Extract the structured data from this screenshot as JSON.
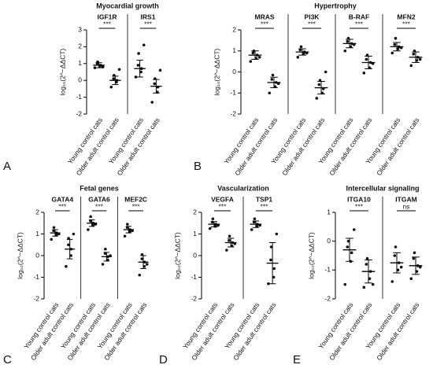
{
  "chart_data": [
    {
      "type": "dot",
      "panel": "A",
      "title": "Myocardial growth",
      "y_label": "log₁₀(2^−ΔΔCT)",
      "ylim": [
        -2,
        3
      ],
      "yticks": [
        -2,
        -1,
        0,
        1,
        2,
        3
      ],
      "categories": [
        "Young control cats",
        "Older adult control cats"
      ],
      "genes": [
        {
          "name": "IGF1R",
          "significance": "***",
          "groups": [
            {
              "mean": 0.9,
              "sd": 0.15,
              "points": [
                0.75,
                0.85,
                0.9,
                1.0,
                1.1,
                0.8
              ]
            },
            {
              "mean": 0.0,
              "sd": 0.25,
              "points": [
                -0.4,
                -0.1,
                0.0,
                0.1,
                0.3,
                0.65
              ]
            }
          ]
        },
        {
          "name": "IRS1",
          "significance": "***",
          "groups": [
            {
              "mean": 0.7,
              "sd": 0.5,
              "points": [
                0.2,
                0.5,
                0.7,
                0.9,
                1.6,
                2.1
              ]
            },
            {
              "mean": -0.35,
              "sd": 0.4,
              "points": [
                -1.3,
                -0.7,
                -0.4,
                -0.2,
                0.1,
                0.6
              ]
            }
          ]
        }
      ]
    },
    {
      "type": "dot",
      "panel": "B",
      "title": "Hypertrophy",
      "y_label": "log₁₀(2^−ΔΔCT)",
      "ylim": [
        -2,
        2
      ],
      "yticks": [
        -2,
        -1,
        0,
        1,
        2
      ],
      "categories": [
        "Young control cats",
        "Older adult control cats"
      ],
      "genes": [
        {
          "name": "MRAS",
          "significance": "***",
          "groups": [
            {
              "mean": 0.8,
              "sd": 0.2,
              "points": [
                0.5,
                0.65,
                0.8,
                0.9,
                1.0,
                0.7
              ]
            },
            {
              "mean": -0.5,
              "sd": 0.25,
              "points": [
                -1.0,
                -0.7,
                -0.5,
                -0.35,
                -0.15,
                -0.55
              ]
            }
          ]
        },
        {
          "name": "PI3K",
          "significance": "***",
          "groups": [
            {
              "mean": 0.95,
              "sd": 0.15,
              "points": [
                0.7,
                0.85,
                0.95,
                1.05,
                1.2,
                0.9
              ]
            },
            {
              "mean": -0.75,
              "sd": 0.3,
              "points": [
                -1.25,
                -1.0,
                -0.8,
                -0.6,
                -0.4,
                0.0
              ]
            }
          ]
        },
        {
          "name": "B-RAF",
          "significance": "***",
          "groups": [
            {
              "mean": 1.35,
              "sd": 0.2,
              "points": [
                1.0,
                1.2,
                1.35,
                1.45,
                1.6,
                1.3
              ]
            },
            {
              "mean": 0.45,
              "sd": 0.3,
              "points": [
                -0.05,
                0.2,
                0.45,
                0.6,
                0.8,
                0.4
              ]
            }
          ]
        },
        {
          "name": "MFN2",
          "significance": "***",
          "groups": [
            {
              "mean": 1.2,
              "sd": 0.2,
              "points": [
                0.9,
                1.1,
                1.2,
                1.3,
                1.6,
                1.15
              ]
            },
            {
              "mean": 0.7,
              "sd": 0.25,
              "points": [
                0.3,
                0.55,
                0.7,
                0.85,
                1.0,
                0.6
              ]
            }
          ]
        }
      ]
    },
    {
      "type": "dot",
      "panel": "C",
      "title": "Fetal genes",
      "y_label": "log₁₀(2^−ΔΔCT)",
      "ylim": [
        -2,
        2
      ],
      "yticks": [
        -2,
        -1,
        0,
        1,
        2
      ],
      "categories": [
        "Young control cats",
        "Older adult control cats"
      ],
      "genes": [
        {
          "name": "GATA4",
          "significance": "***",
          "groups": [
            {
              "mean": 1.05,
              "sd": 0.15,
              "points": [
                0.75,
                0.95,
                1.05,
                1.15,
                1.3,
                1.0
              ]
            },
            {
              "mean": 0.3,
              "sd": 0.45,
              "points": [
                -0.5,
                0.0,
                0.3,
                0.5,
                0.8,
                1.0
              ]
            }
          ]
        },
        {
          "name": "GATA6",
          "significance": "***",
          "groups": [
            {
              "mean": 1.5,
              "sd": 0.15,
              "points": [
                1.2,
                1.4,
                1.5,
                1.6,
                1.8,
                1.45
              ]
            },
            {
              "mean": -0.05,
              "sd": 0.2,
              "points": [
                -0.4,
                -0.2,
                -0.05,
                0.1,
                0.3,
                0.0
              ]
            }
          ]
        },
        {
          "name": "MEF2C",
          "significance": "***",
          "groups": [
            {
              "mean": 1.2,
              "sd": 0.15,
              "points": [
                0.9,
                1.1,
                1.2,
                1.3,
                1.45,
                1.15
              ]
            },
            {
              "mean": -0.3,
              "sd": 0.3,
              "points": [
                -0.9,
                -0.5,
                -0.3,
                -0.15,
                0.05,
                -0.4
              ]
            }
          ]
        }
      ]
    },
    {
      "type": "dot",
      "panel": "D",
      "title": "Vascularization",
      "y_label": "log₁₀(2^−ΔΔCT)",
      "ylim": [
        -2,
        2
      ],
      "yticks": [
        -2,
        -1,
        0,
        1,
        2
      ],
      "categories": [
        "Young control cats",
        "Older adult control cats"
      ],
      "genes": [
        {
          "name": "VEGFA",
          "significance": "***",
          "groups": [
            {
              "mean": 1.45,
              "sd": 0.12,
              "points": [
                1.25,
                1.35,
                1.45,
                1.55,
                1.7,
                1.4
              ]
            },
            {
              "mean": 0.6,
              "sd": 0.2,
              "points": [
                0.25,
                0.45,
                0.6,
                0.7,
                0.9,
                0.55
              ]
            }
          ]
        },
        {
          "name": "TSP1",
          "significance": "***",
          "groups": [
            {
              "mean": 1.45,
              "sd": 0.15,
              "points": [
                1.2,
                1.35,
                1.45,
                1.55,
                1.7,
                1.4
              ]
            },
            {
              "mean": -0.35,
              "sd": 0.95,
              "points": [
                -1.3,
                -1.0,
                -0.6,
                -0.2,
                0.4,
                1.0
              ]
            }
          ]
        }
      ]
    },
    {
      "type": "dot",
      "panel": "E",
      "title": "Intercellular signaling",
      "y_label": "log₁₀(2^−ΔΔCT)",
      "ylim": [
        -2,
        1
      ],
      "yticks": [
        -2,
        -1,
        0,
        1
      ],
      "categories": [
        "Young control cats",
        "Older adult control cats"
      ],
      "genes": [
        {
          "name": "ITGA10",
          "significance": "***",
          "groups": [
            {
              "mean": -0.3,
              "sd": 0.4,
              "points": [
                -1.5,
                -0.7,
                -0.4,
                -0.2,
                0.0,
                0.4
              ]
            },
            {
              "mean": -1.05,
              "sd": 0.4,
              "points": [
                -1.6,
                -1.3,
                -1.05,
                -0.8,
                -0.6,
                -1.5
              ]
            }
          ]
        },
        {
          "name": "ITGAM",
          "significance": "ns",
          "groups": [
            {
              "mean": -0.75,
              "sd": 0.35,
              "points": [
                -1.4,
                -1.0,
                -0.75,
                -0.5,
                -0.2,
                -0.9
              ]
            },
            {
              "mean": -0.85,
              "sd": 0.3,
              "points": [
                -1.3,
                -1.05,
                -0.85,
                -0.6,
                -0.4,
                -0.9
              ]
            }
          ]
        }
      ]
    }
  ]
}
